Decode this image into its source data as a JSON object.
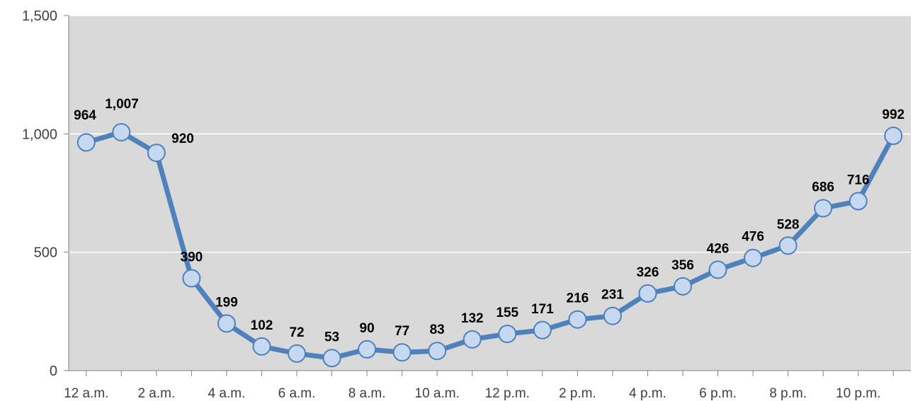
{
  "chart_data": {
    "type": "line",
    "x": [
      "12 a.m.",
      "",
      "2 a.m.",
      "",
      "4 a.m.",
      "",
      "6 a.m.",
      "",
      "8 a.m.",
      "",
      "10 a.m.",
      "",
      "12 p.m.",
      "",
      "2 p.m.",
      "",
      "4 p.m.",
      "",
      "6 p.m.",
      "",
      "8 p.m.",
      "",
      "10 p.m.",
      ""
    ],
    "series": [
      {
        "values": [
          964,
          1007,
          920,
          390,
          199,
          102,
          72,
          53,
          90,
          77,
          83,
          132,
          155,
          171,
          216,
          231,
          326,
          356,
          426,
          476,
          528,
          686,
          716,
          992
        ],
        "data_labels": [
          "964",
          "1,007",
          "920",
          "390",
          "199",
          "102",
          "72",
          "53",
          "90",
          "77",
          "83",
          "132",
          "155",
          "171",
          "216",
          "231",
          "326",
          "356",
          "426",
          "476",
          "528",
          "686",
          "716",
          "992"
        ]
      }
    ],
    "ylim": [
      0,
      1500
    ],
    "yticks": [
      0,
      500,
      1000,
      1500
    ],
    "ytick_labels": [
      "0",
      "500",
      "1,000",
      "1,500"
    ],
    "grid": true,
    "colors": {
      "plot_background": "#d9d9d9",
      "gridline": "#ffffff",
      "line": "#4f81bd",
      "marker_fill": "#c6d9f1",
      "axis": "#808080"
    }
  }
}
